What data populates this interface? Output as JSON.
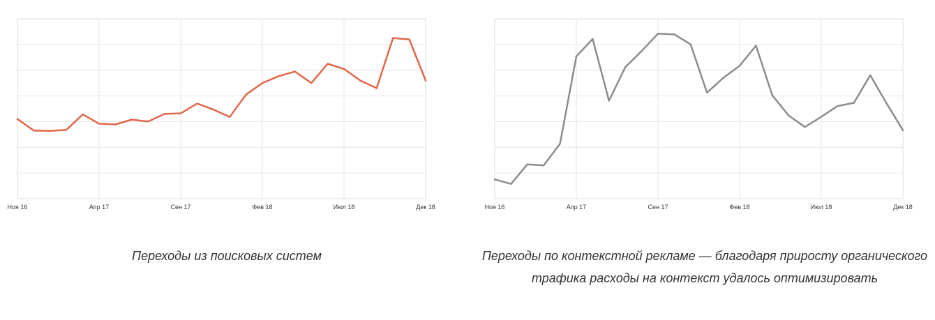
{
  "chart_data": [
    {
      "type": "line",
      "title": "",
      "xlabel": "",
      "ylabel": "",
      "grid": true,
      "color": "#e0674a",
      "x_ticks": [
        "Ноя 16",
        "Апр 17",
        "Сен 17",
        "Фев 18",
        "Июл 18",
        "Дек 18"
      ],
      "x": [
        "2016-11",
        "2016-12",
        "2017-01",
        "2017-02",
        "2017-03",
        "2017-04",
        "2017-05",
        "2017-06",
        "2017-07",
        "2017-08",
        "2017-09",
        "2017-10",
        "2017-11",
        "2017-12",
        "2018-01",
        "2018-02",
        "2018-03",
        "2018-04",
        "2018-05",
        "2018-06",
        "2018-07",
        "2018-08",
        "2018-09",
        "2018-10",
        "2018-11",
        "2018-12"
      ],
      "values": [
        3.1,
        2.65,
        2.64,
        2.68,
        3.28,
        2.92,
        2.89,
        3.08,
        3.0,
        3.3,
        3.32,
        3.7,
        3.47,
        3.18,
        4.05,
        4.5,
        4.77,
        4.95,
        4.5,
        5.25,
        5.05,
        4.6,
        4.3,
        6.25,
        6.2,
        4.6
      ],
      "ylim": [
        0,
        7
      ]
    },
    {
      "type": "line",
      "title": "",
      "xlabel": "",
      "ylabel": "",
      "grid": true,
      "color": "#8c8c8c",
      "x_ticks": [
        "Ноя 16",
        "Апр 17",
        "Сен 17",
        "Фев 18",
        "Июл 18",
        "Дек 18"
      ],
      "x": [
        "2016-11",
        "2016-12",
        "2017-01",
        "2017-02",
        "2017-03",
        "2017-04",
        "2017-05",
        "2017-06",
        "2017-07",
        "2017-08",
        "2017-09",
        "2017-10",
        "2017-11",
        "2017-12",
        "2018-01",
        "2018-02",
        "2018-03",
        "2018-04",
        "2018-05",
        "2018-06",
        "2018-07",
        "2018-08",
        "2018-09",
        "2018-10",
        "2018-11",
        "2018-12"
      ],
      "values": [
        0.72,
        0.55,
        1.28,
        1.24,
        2.05,
        5.3,
        5.95,
        3.65,
        4.9,
        5.5,
        6.15,
        6.12,
        5.75,
        3.95,
        4.5,
        4.95,
        5.7,
        3.85,
        3.1,
        2.67,
        3.05,
        3.45,
        3.57,
        4.6,
        3.55,
        2.55
      ],
      "ylim": [
        0,
        6.7
      ]
    }
  ],
  "captions": {
    "left": "Переходы из поисковых систем",
    "right": "Переходы по контекстной рекламе — благодаря приросту органического трафика расходы на контекст удалось оптимизировать"
  }
}
